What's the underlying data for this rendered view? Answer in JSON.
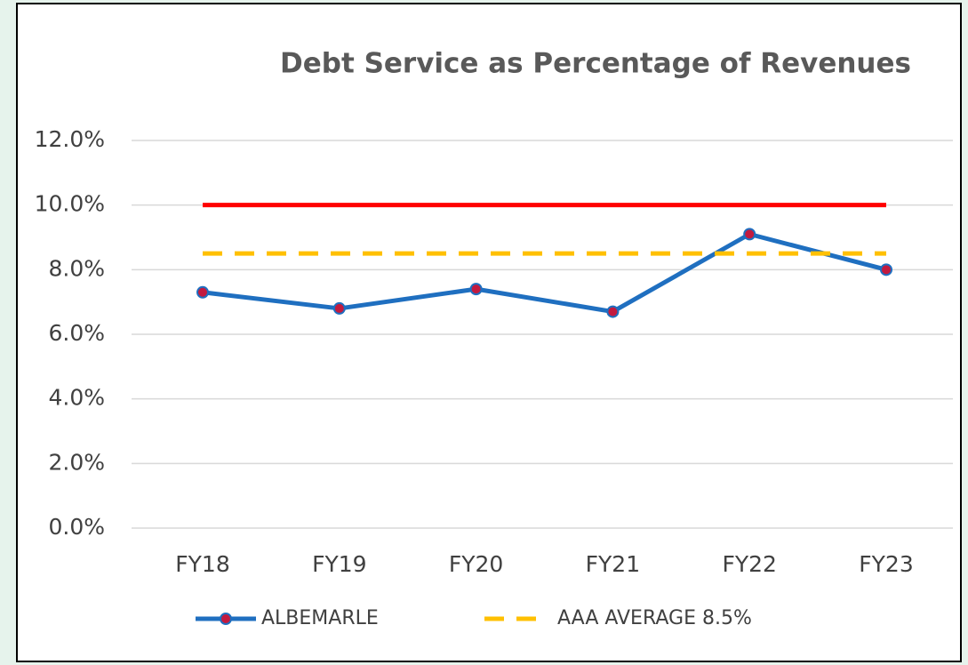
{
  "chart_data": {
    "type": "line",
    "title": "Debt Service as Percentage of Revenues",
    "categories": [
      "FY18",
      "FY19",
      "FY20",
      "FY21",
      "FY22",
      "FY23"
    ],
    "series": [
      {
        "name": "ALBEMARLE",
        "color": "#1f6fc0",
        "marker": true,
        "marker_color": "#c21a3f",
        "line_style": "solid",
        "values": [
          7.3,
          6.8,
          7.4,
          6.7,
          9.1,
          8.0
        ]
      },
      {
        "color": "#ff0000",
        "marker": false,
        "line_style": "solid",
        "values": [
          10.0,
          10.0,
          10.0,
          10.0,
          10.0,
          10.0
        ]
      },
      {
        "name": "AAA AVERAGE 8.5%",
        "color": "#ffc000",
        "marker": false,
        "line_style": "dashed",
        "values": [
          8.5,
          8.5,
          8.5,
          8.5,
          8.5,
          8.5
        ]
      }
    ],
    "ylim": [
      0,
      12
    ],
    "yticks": [
      {
        "value": 0,
        "label": "0.0%"
      },
      {
        "value": 2,
        "label": "2.0%"
      },
      {
        "value": 4,
        "label": "4.0%"
      },
      {
        "value": 6,
        "label": "6.0%"
      },
      {
        "value": 8,
        "label": "8.0%"
      },
      {
        "value": 10,
        "label": "10.0%"
      },
      {
        "value": 12,
        "label": "12.0%"
      }
    ],
    "grid": true,
    "legend": "bottom"
  }
}
